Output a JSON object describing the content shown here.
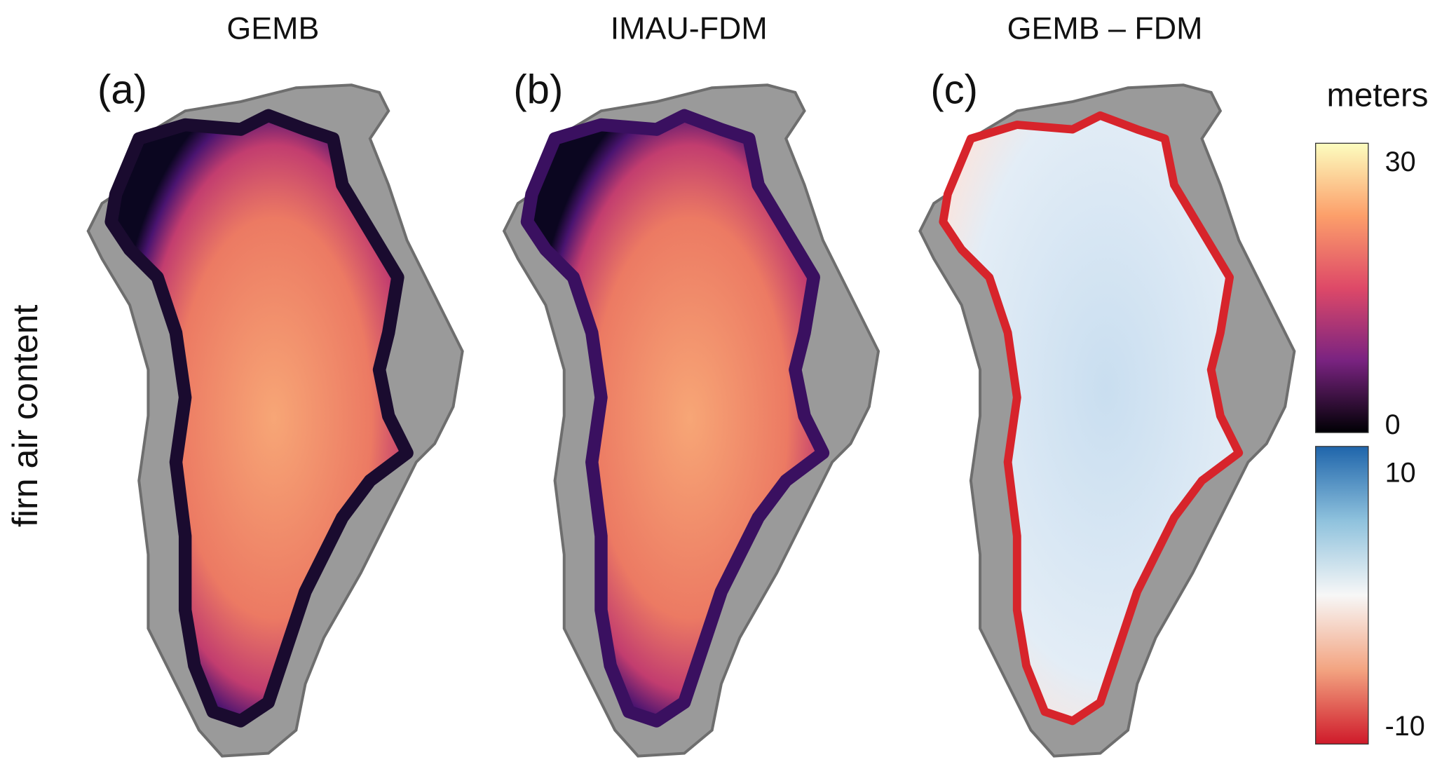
{
  "y_label": "firn air content",
  "panels": [
    {
      "title": "GEMB",
      "label": "(a)"
    },
    {
      "title": "IMAU-FDM",
      "label": "(b)"
    },
    {
      "title": "GEMB – FDM",
      "label": "(c)"
    }
  ],
  "colorbar": {
    "label": "meters",
    "bars": [
      {
        "lim": [
          -1,
          32
        ],
        "ticks": [
          0,
          30
        ]
      },
      {
        "lim": [
          -11.5,
          12
        ],
        "ticks": [
          -10,
          10
        ]
      }
    ]
  }
}
